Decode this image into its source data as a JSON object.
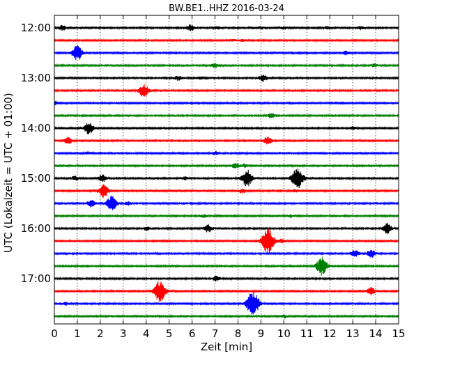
{
  "chart_data": {
    "type": "line",
    "title": "BW.BE1..HHZ 2016-03-24",
    "xlabel": "Zeit  [min]",
    "ylabel": "UTC (Lokalzeit = UTC + 01:00)",
    "xlim": [
      0,
      15
    ],
    "x_ticks": [
      0,
      1,
      2,
      3,
      4,
      5,
      6,
      7,
      8,
      9,
      10,
      11,
      12,
      13,
      14,
      15
    ],
    "y_tick_labels": [
      "12:00",
      "13:00",
      "14:00",
      "15:00",
      "16:00",
      "17:00"
    ],
    "row_minutes": 15,
    "row_start": "12:00",
    "grid": "vertical dotted",
    "colors": [
      "#000000",
      "#ff0000",
      "#0000ff",
      "#008000"
    ],
    "series": [
      {
        "start": "12:00",
        "events": [
          {
            "x": 0.35,
            "a": 0.6
          },
          {
            "x": 5.95,
            "a": 0.8
          },
          {
            "x": 7.1,
            "a": 0.3
          },
          {
            "x": 9.0,
            "a": 0.25
          },
          {
            "x": 10.0,
            "a": 0.25
          },
          {
            "x": 11.9,
            "a": 0.35
          },
          {
            "x": 13.35,
            "a": 0.4
          }
        ]
      },
      {
        "start": "12:15",
        "events": [
          {
            "x": 7.8,
            "a": 0.2
          },
          {
            "x": 8.2,
            "a": 0.2
          }
        ]
      },
      {
        "start": "12:30",
        "events": [
          {
            "x": 1.0,
            "a": 1.8
          },
          {
            "x": 12.7,
            "a": 0.4
          }
        ]
      },
      {
        "start": "12:45",
        "events": [
          {
            "x": 7.0,
            "a": 0.45
          },
          {
            "x": 13.95,
            "a": 0.35
          }
        ]
      },
      {
        "start": "13:00",
        "events": [
          {
            "x": 5.4,
            "a": 0.5
          },
          {
            "x": 6.3,
            "a": 0.25
          },
          {
            "x": 9.1,
            "a": 0.8
          }
        ]
      },
      {
        "start": "13:15",
        "events": [
          {
            "x": 3.9,
            "a": 1.6
          }
        ]
      },
      {
        "start": "13:30",
        "events": [
          {
            "x": 0.05,
            "a": 0.4
          }
        ]
      },
      {
        "start": "13:45",
        "events": [
          {
            "x": 9.45,
            "a": 0.6
          }
        ]
      },
      {
        "start": "14:00",
        "events": [
          {
            "x": 1.5,
            "a": 1.4
          },
          {
            "x": 13.0,
            "a": 0.3
          }
        ]
      },
      {
        "start": "14:15",
        "events": [
          {
            "x": 0.6,
            "a": 0.8
          },
          {
            "x": 9.3,
            "a": 0.9
          }
        ]
      },
      {
        "start": "14:30",
        "events": [
          {
            "x": 1.5,
            "a": 0.3
          },
          {
            "x": 7.0,
            "a": 0.4
          }
        ]
      },
      {
        "start": "14:45",
        "events": [
          {
            "x": 7.9,
            "a": 0.6
          },
          {
            "x": 8.3,
            "a": 0.45
          }
        ]
      },
      {
        "start": "15:00",
        "events": [
          {
            "x": 0.9,
            "a": 0.5
          },
          {
            "x": 2.1,
            "a": 0.8
          },
          {
            "x": 5.7,
            "a": 0.35
          },
          {
            "x": 8.4,
            "a": 2.0
          },
          {
            "x": 10.6,
            "a": 2.6
          }
        ]
      },
      {
        "start": "15:15",
        "events": [
          {
            "x": 2.15,
            "a": 1.6
          },
          {
            "x": 8.2,
            "a": 0.5
          },
          {
            "x": 10.5,
            "a": 0.3
          }
        ]
      },
      {
        "start": "15:30",
        "events": [
          {
            "x": 1.6,
            "a": 0.8
          },
          {
            "x": 2.5,
            "a": 1.8
          },
          {
            "x": 3.2,
            "a": 0.4
          }
        ]
      },
      {
        "start": "15:45",
        "events": [
          {
            "x": 6.5,
            "a": 0.3
          },
          {
            "x": 10.3,
            "a": 0.3
          }
        ]
      },
      {
        "start": "16:00",
        "events": [
          {
            "x": 4.05,
            "a": 0.5
          },
          {
            "x": 6.7,
            "a": 0.9
          },
          {
            "x": 14.5,
            "a": 1.2
          }
        ]
      },
      {
        "start": "16:15",
        "events": [
          {
            "x": 9.3,
            "a": 3.0
          },
          {
            "x": 9.9,
            "a": 0.4
          }
        ]
      },
      {
        "start": "16:30",
        "events": [
          {
            "x": 13.1,
            "a": 0.9
          },
          {
            "x": 13.8,
            "a": 1.0
          }
        ]
      },
      {
        "start": "16:45",
        "events": [
          {
            "x": 11.65,
            "a": 2.2
          }
        ]
      },
      {
        "start": "17:00",
        "events": [
          {
            "x": 7.05,
            "a": 0.6
          }
        ]
      },
      {
        "start": "17:15",
        "events": [
          {
            "x": 4.6,
            "a": 2.6
          },
          {
            "x": 13.8,
            "a": 0.9
          }
        ]
      },
      {
        "start": "17:30",
        "events": [
          {
            "x": 0.5,
            "a": 0.3
          },
          {
            "x": 8.65,
            "a": 3.0
          }
        ]
      },
      {
        "start": "17:45",
        "events": [
          {
            "x": 10.0,
            "a": 0.4
          }
        ]
      }
    ]
  }
}
